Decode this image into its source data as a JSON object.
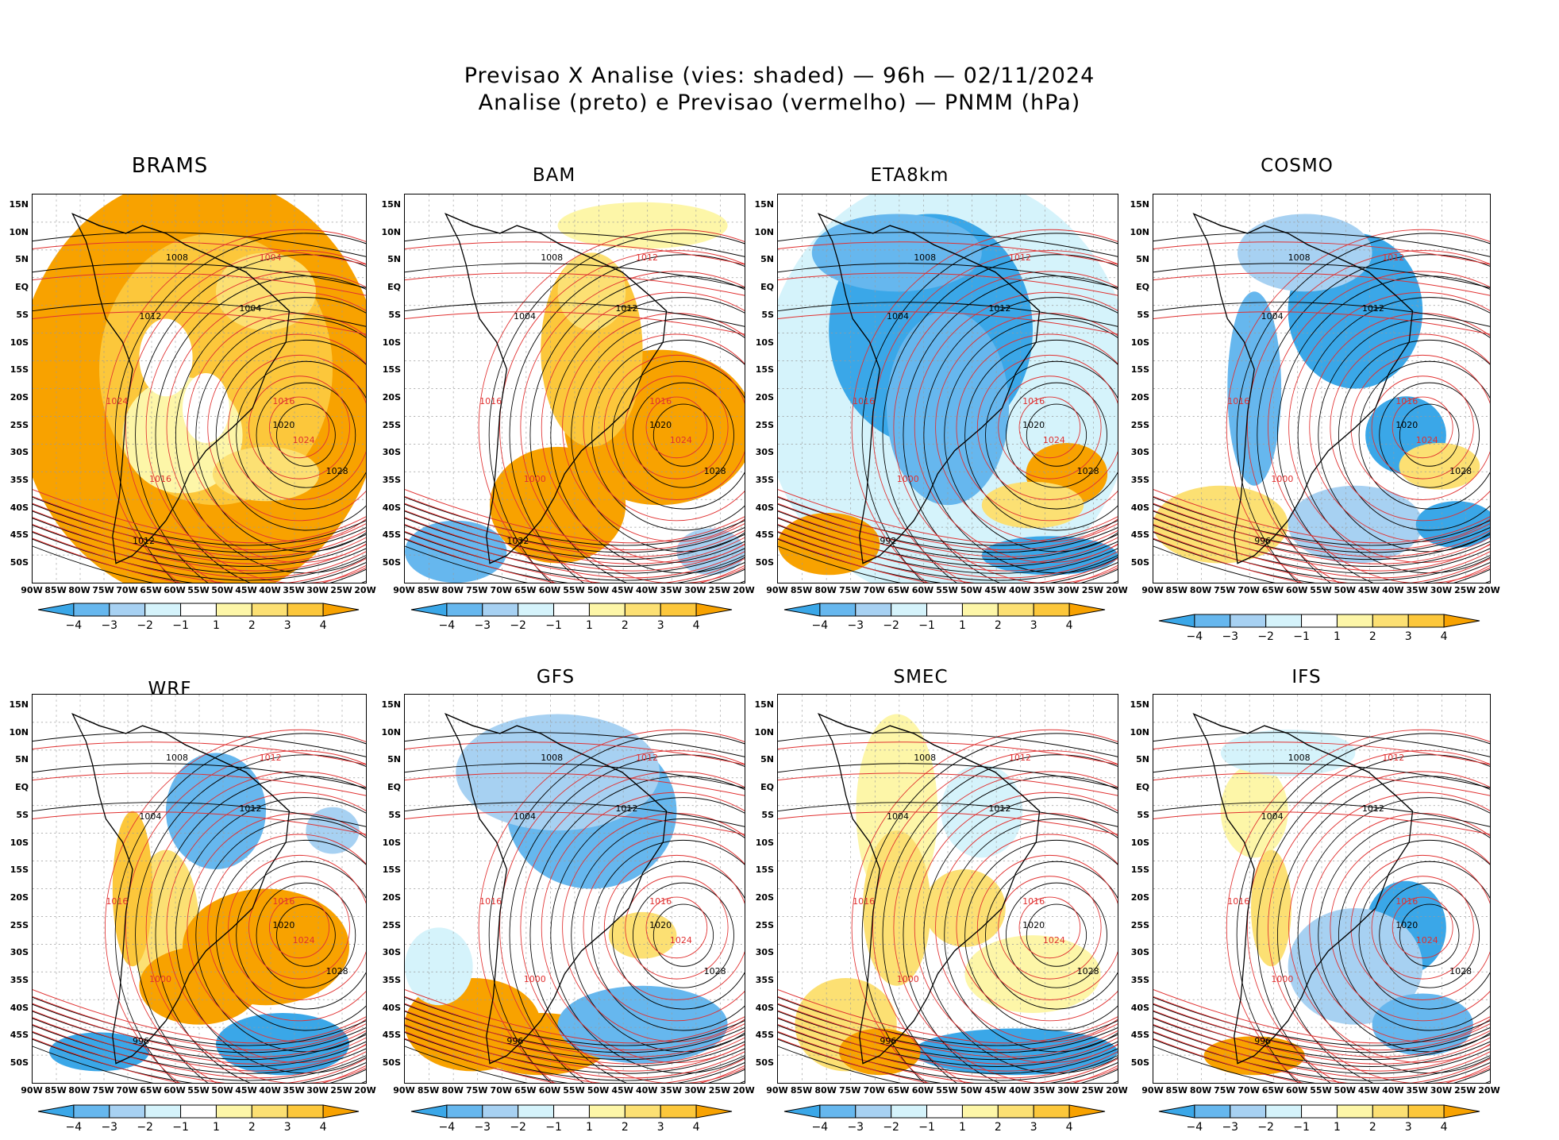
{
  "title": {
    "line1": "Previsao X Analise (vies: shaded) — 96h — 02/11/2024",
    "line2": "Analise (preto) e Previsao (vermelho) — PNMM (hPa)"
  },
  "axes": {
    "lat_labels": [
      "15N",
      "10N",
      "5N",
      "EQ",
      "5S",
      "10S",
      "15S",
      "20S",
      "25S",
      "30S",
      "35S",
      "40S",
      "45S",
      "50S"
    ],
    "lon_labels": [
      "90W",
      "85W",
      "80W",
      "75W",
      "70W",
      "65W",
      "60W",
      "55W",
      "50W",
      "45W",
      "40W",
      "35W",
      "30W",
      "25W",
      "20W"
    ]
  },
  "colorbar": {
    "labels": [
      "−4",
      "−3",
      "−2",
      "−1",
      "1",
      "2",
      "3",
      "4"
    ],
    "colors": [
      "#3aa7e8",
      "#66b7ee",
      "#a7d1f2",
      "#d5f3fb",
      "#ffffff",
      "#fdf6a8",
      "#fce073",
      "#fcc73b",
      "#f8a200"
    ]
  },
  "colors": {
    "analysis_contour": "#000000",
    "forecast_contour": "#e03030",
    "grid": "#9a9a9a"
  },
  "panels": [
    {
      "name": "BRAMS",
      "bias": "positive",
      "labels": [
        "1008",
        "1004",
        "1012",
        "1016",
        "1020",
        "1024",
        "1028",
        "1016",
        "1012",
        "1024",
        "1004"
      ]
    },
    {
      "name": "BAM",
      "bias": "mixed-positive",
      "labels": [
        "1008",
        "1012",
        "1004",
        "1016",
        "1020",
        "1024",
        "1028",
        "1000",
        "1032",
        "1016",
        "1012"
      ]
    },
    {
      "name": "ETA8km",
      "bias": "negative",
      "labels": [
        "1008",
        "1012",
        "1004",
        "1016",
        "1020",
        "1024",
        "1028",
        "1000",
        "992",
        "1016",
        "1012"
      ]
    },
    {
      "name": "COSMO",
      "bias": "mixed-negative",
      "labels": [
        "1008",
        "1012",
        "1004",
        "1016",
        "1020",
        "1024",
        "1028",
        "1000",
        "996",
        "1016",
        "1012"
      ]
    },
    {
      "name": "WRF",
      "bias": "mixed-positive-south",
      "labels": [
        "1008",
        "1012",
        "1004",
        "1016",
        "1020",
        "1024",
        "1028",
        "1000",
        "996",
        "1016",
        "1012"
      ]
    },
    {
      "name": "GFS",
      "bias": "mixed-negative-north",
      "labels": [
        "1008",
        "1012",
        "1004",
        "1016",
        "1020",
        "1024",
        "1028",
        "1000",
        "996",
        "1016",
        "1012"
      ]
    },
    {
      "name": "SMEC",
      "bias": "mixed-positive-andes",
      "labels": [
        "1008",
        "1012",
        "1004",
        "1016",
        "1020",
        "1024",
        "1028",
        "1000",
        "996",
        "1016",
        "1012"
      ]
    },
    {
      "name": "IFS",
      "bias": "mixed-light",
      "labels": [
        "1008",
        "1012",
        "1004",
        "1016",
        "1020",
        "1024",
        "1028",
        "1000",
        "996",
        "1016",
        "1012"
      ]
    }
  ]
}
